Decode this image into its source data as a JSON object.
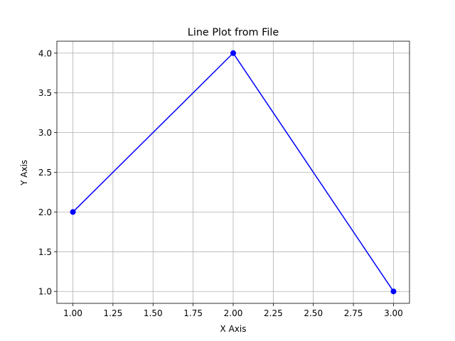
{
  "chart_data": {
    "type": "line",
    "title": "Line Plot from File",
    "xlabel": "X Axis",
    "ylabel": "Y Axis",
    "x": [
      1,
      2,
      3
    ],
    "series": [
      {
        "values": [
          2,
          4,
          1
        ],
        "color": "#0000ff",
        "marker": "circle"
      }
    ],
    "xlim": [
      0.9,
      3.1
    ],
    "ylim": [
      0.85,
      4.15
    ],
    "xticks": [
      1.0,
      1.25,
      1.5,
      1.75,
      2.0,
      2.25,
      2.5,
      2.75,
      3.0
    ],
    "yticks": [
      1.0,
      1.5,
      2.0,
      2.5,
      3.0,
      3.5,
      4.0
    ],
    "xtick_labels": [
      "1.00",
      "1.25",
      "1.50",
      "1.75",
      "2.00",
      "2.25",
      "2.50",
      "2.75",
      "3.00"
    ],
    "ytick_labels": [
      "1.0",
      "1.5",
      "2.0",
      "2.5",
      "3.0",
      "3.5",
      "4.0"
    ],
    "grid": true,
    "grid_color": "#b0b0b0"
  }
}
